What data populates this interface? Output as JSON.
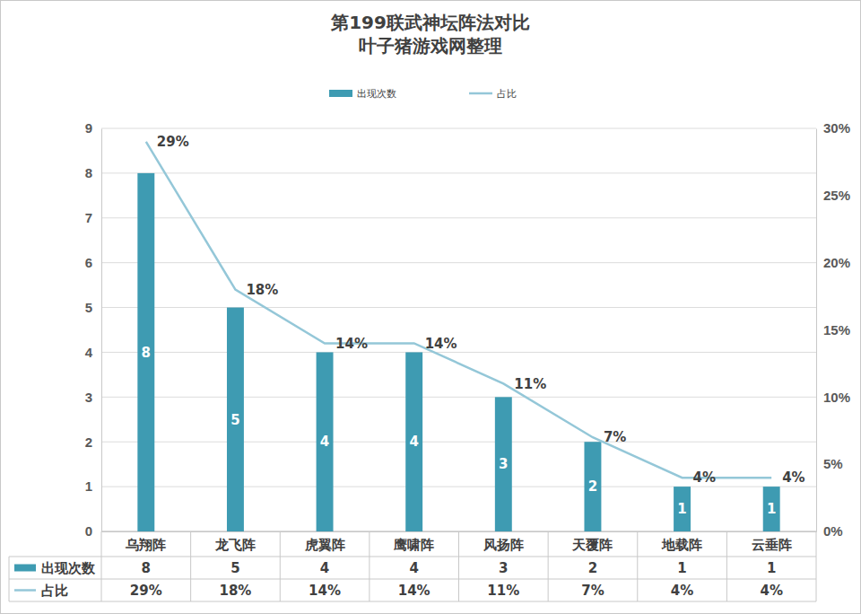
{
  "chart_data": {
    "type": "bar",
    "title": "第199联武神坛阵法对比",
    "subtitle": "叶子猪游戏网整理",
    "categories": [
      "乌翔阵",
      "龙飞阵",
      "虎翼阵",
      "鹰啸阵",
      "风扬阵",
      "天覆阵",
      "地载阵",
      "云垂阵"
    ],
    "series": [
      {
        "name": "出现次数",
        "type": "bar",
        "color": "#3e9bb2",
        "values": [
          8,
          5,
          4,
          4,
          3,
          2,
          1,
          1
        ]
      },
      {
        "name": "占比",
        "type": "line",
        "axis": "y2",
        "color": "#94c7d8",
        "line_style": "solid",
        "values": [
          29,
          18,
          14,
          14,
          11,
          7,
          4,
          4
        ],
        "value_labels": [
          "29%",
          "18%",
          "14%",
          "14%",
          "11%",
          "7%",
          "4%",
          "4%"
        ]
      }
    ],
    "ylim": [
      0,
      9
    ],
    "yticks": [
      0,
      1,
      2,
      3,
      4,
      5,
      6,
      7,
      8,
      9
    ],
    "y2lim": [
      0,
      30
    ],
    "y2ticks": [
      {
        "value": 0,
        "label": "0%"
      },
      {
        "value": 5,
        "label": "5%"
      },
      {
        "value": 10,
        "label": "10%"
      },
      {
        "value": 15,
        "label": "15%"
      },
      {
        "value": 20,
        "label": "20%"
      },
      {
        "value": 25,
        "label": "25%"
      },
      {
        "value": 30,
        "label": "30%"
      }
    ],
    "grid": true,
    "legend": "top",
    "data_labels": true
  }
}
